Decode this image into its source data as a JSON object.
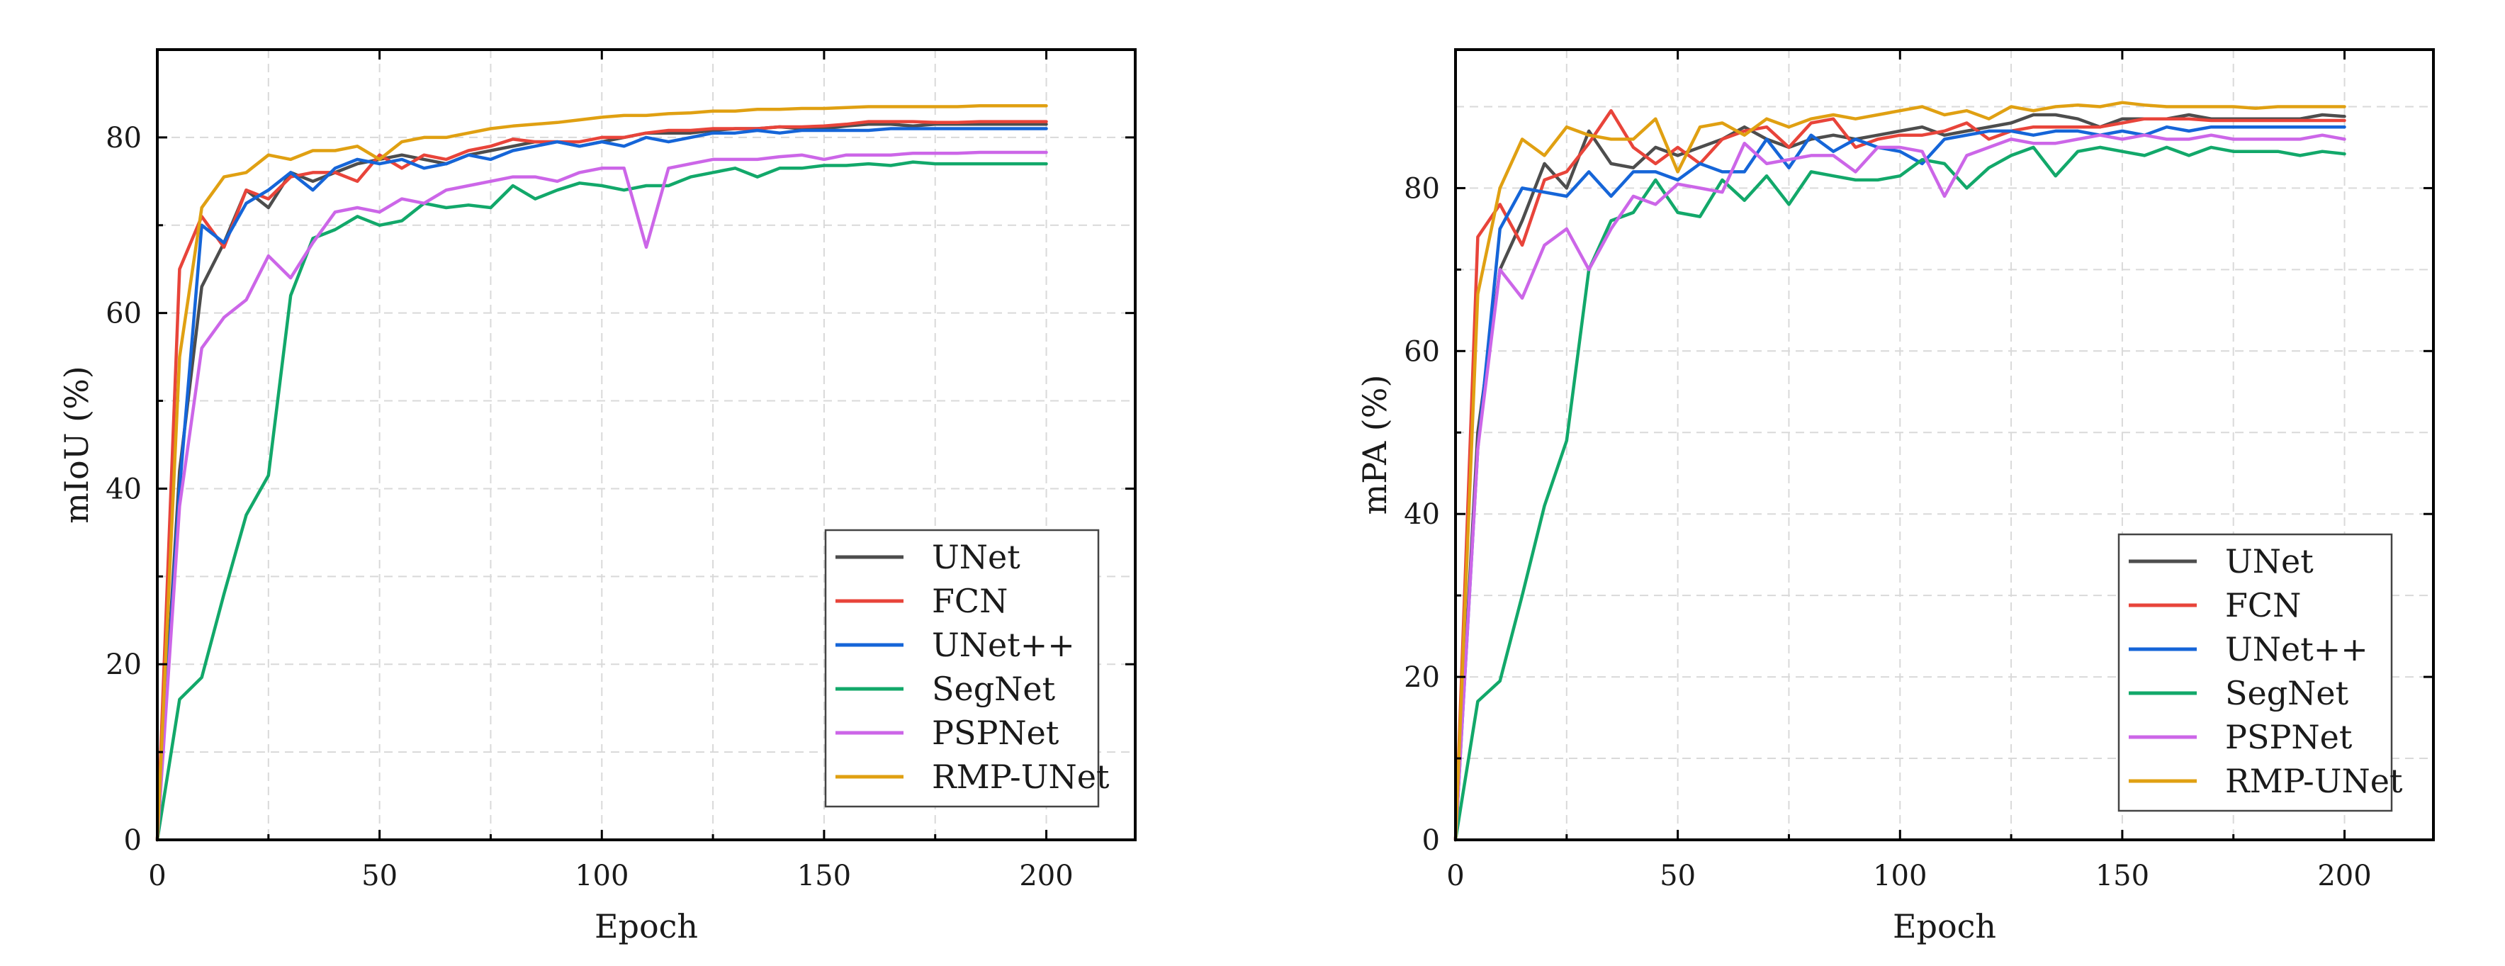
{
  "chart_data": [
    {
      "type": "line",
      "title": "",
      "xlabel": "Epoch",
      "ylabel": "mIoU (%)",
      "xlim": [
        0,
        220
      ],
      "ylim": [
        0,
        90
      ],
      "xticks": [
        0,
        50,
        100,
        150,
        200
      ],
      "yticks": [
        0,
        20,
        40,
        60,
        80
      ],
      "grid": true,
      "legend_position": "bottom-right",
      "x": [
        0,
        5,
        10,
        15,
        20,
        25,
        30,
        35,
        40,
        45,
        50,
        55,
        60,
        65,
        70,
        75,
        80,
        85,
        90,
        95,
        100,
        105,
        110,
        115,
        120,
        125,
        130,
        135,
        140,
        145,
        150,
        155,
        160,
        165,
        170,
        175,
        180,
        185,
        190,
        195,
        200
      ],
      "series": [
        {
          "name": "UNet",
          "color": "#4d4d4d",
          "values": [
            0,
            42,
            63,
            68,
            74,
            72,
            76,
            75,
            76,
            77,
            77.5,
            78,
            77.5,
            77,
            78,
            78.5,
            79,
            79.5,
            79.5,
            79,
            79.5,
            80,
            80.5,
            80.5,
            80.5,
            80.8,
            81,
            81,
            81.2,
            81,
            81,
            81.3,
            81.5,
            81.5,
            81.3,
            81.5,
            81.5,
            81.5,
            81.5,
            81.5,
            81.5
          ]
        },
        {
          "name": "FCN",
          "color": "#e8443a",
          "values": [
            0,
            65,
            71,
            67.5,
            74,
            73,
            75.5,
            76,
            76,
            75,
            78,
            76.5,
            78,
            77.5,
            78.5,
            79,
            79.8,
            79.5,
            79.5,
            79.5,
            80,
            80,
            80.5,
            80.8,
            80.8,
            81,
            81,
            81,
            81.2,
            81.2,
            81.3,
            81.5,
            81.8,
            81.8,
            81.8,
            81.7,
            81.7,
            81.8,
            81.8,
            81.8,
            81.8
          ]
        },
        {
          "name": "UNet++",
          "color": "#1565d8",
          "values": [
            0,
            40,
            70,
            68,
            72.5,
            74,
            76,
            74,
            76.5,
            77.5,
            77,
            77.5,
            76.5,
            77,
            78,
            77.5,
            78.5,
            79,
            79.5,
            79,
            79.5,
            79,
            80,
            79.5,
            80,
            80.5,
            80.5,
            80.8,
            80.5,
            80.8,
            80.8,
            80.8,
            80.8,
            81,
            81,
            81,
            81,
            81,
            81,
            81,
            81
          ]
        },
        {
          "name": "SegNet",
          "color": "#12a86a",
          "values": [
            0,
            16,
            18.5,
            28,
            37,
            41.5,
            62,
            68.5,
            69.5,
            71,
            70,
            70.5,
            72.5,
            72,
            72.3,
            72,
            74.5,
            73,
            74,
            74.8,
            74.5,
            74,
            74.5,
            74.5,
            75.5,
            76,
            76.5,
            75.5,
            76.5,
            76.5,
            76.8,
            76.8,
            77,
            76.8,
            77.2,
            77,
            77,
            77,
            77,
            77,
            77
          ]
        },
        {
          "name": "PSPNet",
          "color": "#cc66e8",
          "values": [
            0,
            38,
            56,
            59.5,
            61.5,
            66.5,
            64,
            68,
            71.5,
            72,
            71.5,
            73,
            72.5,
            74,
            74.5,
            75,
            75.5,
            75.5,
            75,
            76,
            76.5,
            76.5,
            67.5,
            76.5,
            77,
            77.5,
            77.5,
            77.5,
            77.8,
            78,
            77.5,
            78,
            78,
            78,
            78.2,
            78.2,
            78.2,
            78.3,
            78.3,
            78.3,
            78.3
          ]
        },
        {
          "name": "RMP-UNet",
          "color": "#e0a012",
          "values": [
            0,
            55,
            72,
            75.5,
            76,
            78,
            77.5,
            78.5,
            78.5,
            79,
            77.5,
            79.5,
            80,
            80,
            80.5,
            81,
            81.3,
            81.5,
            81.7,
            82,
            82.3,
            82.5,
            82.5,
            82.7,
            82.8,
            83,
            83,
            83.2,
            83.2,
            83.3,
            83.3,
            83.4,
            83.5,
            83.5,
            83.5,
            83.5,
            83.5,
            83.6,
            83.6,
            83.6,
            83.6
          ]
        }
      ]
    },
    {
      "type": "line",
      "title": "",
      "xlabel": "Epoch",
      "ylabel": "mPA (%)",
      "xlim": [
        0,
        220
      ],
      "ylim": [
        0,
        97
      ],
      "xticks": [
        0,
        50,
        100,
        150,
        200
      ],
      "yticks": [
        0,
        20,
        40,
        60,
        80
      ],
      "grid": true,
      "legend_position": "bottom-right",
      "x": [
        0,
        5,
        10,
        15,
        20,
        25,
        30,
        35,
        40,
        45,
        50,
        55,
        60,
        65,
        70,
        75,
        80,
        85,
        90,
        95,
        100,
        105,
        110,
        115,
        120,
        125,
        130,
        135,
        140,
        145,
        150,
        155,
        160,
        165,
        170,
        175,
        180,
        185,
        190,
        195,
        200
      ],
      "series": [
        {
          "name": "UNet",
          "color": "#4d4d4d",
          "values": [
            0,
            50,
            70,
            76,
            83,
            80,
            87,
            83,
            82.5,
            85,
            84,
            85,
            86,
            87.5,
            86,
            85,
            86,
            86.5,
            86,
            86.5,
            87,
            87.5,
            86.5,
            87,
            87.5,
            88,
            89,
            89,
            88.5,
            87.5,
            88.5,
            88.5,
            88.5,
            89,
            88.5,
            88.5,
            88.5,
            88.5,
            88.5,
            89,
            88.8
          ]
        },
        {
          "name": "FCN",
          "color": "#e8443a",
          "values": [
            0,
            74,
            78,
            73,
            81,
            82,
            85.5,
            89.5,
            85,
            83,
            85,
            83,
            86,
            87,
            87.5,
            85,
            88,
            88.5,
            85,
            86,
            86.5,
            86.5,
            87,
            88,
            86,
            87,
            87.5,
            87.5,
            87.5,
            87.5,
            88,
            88.5,
            88.5,
            88.5,
            88.3,
            88.3,
            88.3,
            88.3,
            88.3,
            88.3,
            88.3
          ]
        },
        {
          "name": "UNet++",
          "color": "#1565d8",
          "values": [
            0,
            48,
            75,
            80,
            79.5,
            79,
            82,
            79,
            82,
            82,
            81,
            83,
            82,
            82,
            86,
            82.5,
            86.5,
            84.5,
            86,
            85,
            84.5,
            83,
            86,
            86.5,
            87,
            87,
            86.5,
            87,
            87,
            86.5,
            87,
            86.5,
            87.5,
            87,
            87.5,
            87.5,
            87.5,
            87.5,
            87.5,
            87.5,
            87.5
          ]
        },
        {
          "name": "SegNet",
          "color": "#12a86a",
          "values": [
            0,
            17,
            19.5,
            30,
            41,
            49,
            70,
            76,
            77,
            81,
            77,
            76.5,
            81,
            78.5,
            81.5,
            78,
            82,
            81.5,
            81,
            81,
            81.5,
            83.5,
            83,
            80,
            82.5,
            84,
            85,
            81.5,
            84.5,
            85,
            84.5,
            84,
            85,
            84,
            85,
            84.5,
            84.5,
            84.5,
            84,
            84.5,
            84.2
          ]
        },
        {
          "name": "PSPNet",
          "color": "#cc66e8",
          "values": [
            0,
            48,
            70,
            66.5,
            73,
            75,
            70,
            75,
            79,
            78,
            80.5,
            80,
            79.5,
            85.5,
            83,
            83.5,
            84,
            84,
            82,
            85,
            85,
            84.5,
            79,
            84,
            85,
            86,
            85.5,
            85.5,
            86,
            86.5,
            86,
            86.5,
            86,
            86,
            86.5,
            86,
            86,
            86,
            86,
            86.5,
            86
          ]
        },
        {
          "name": "RMP-UNet",
          "color": "#e0a012",
          "values": [
            0,
            67,
            80,
            86,
            84,
            87.5,
            86.5,
            86,
            86,
            88.5,
            82,
            87.5,
            88,
            86.5,
            88.5,
            87.5,
            88.5,
            89,
            88.5,
            89,
            89.5,
            90,
            89,
            89.5,
            88.5,
            90,
            89.5,
            90,
            90.2,
            90,
            90.5,
            90.2,
            90,
            90,
            90,
            90,
            89.8,
            90,
            90,
            90,
            90
          ]
        }
      ]
    }
  ]
}
